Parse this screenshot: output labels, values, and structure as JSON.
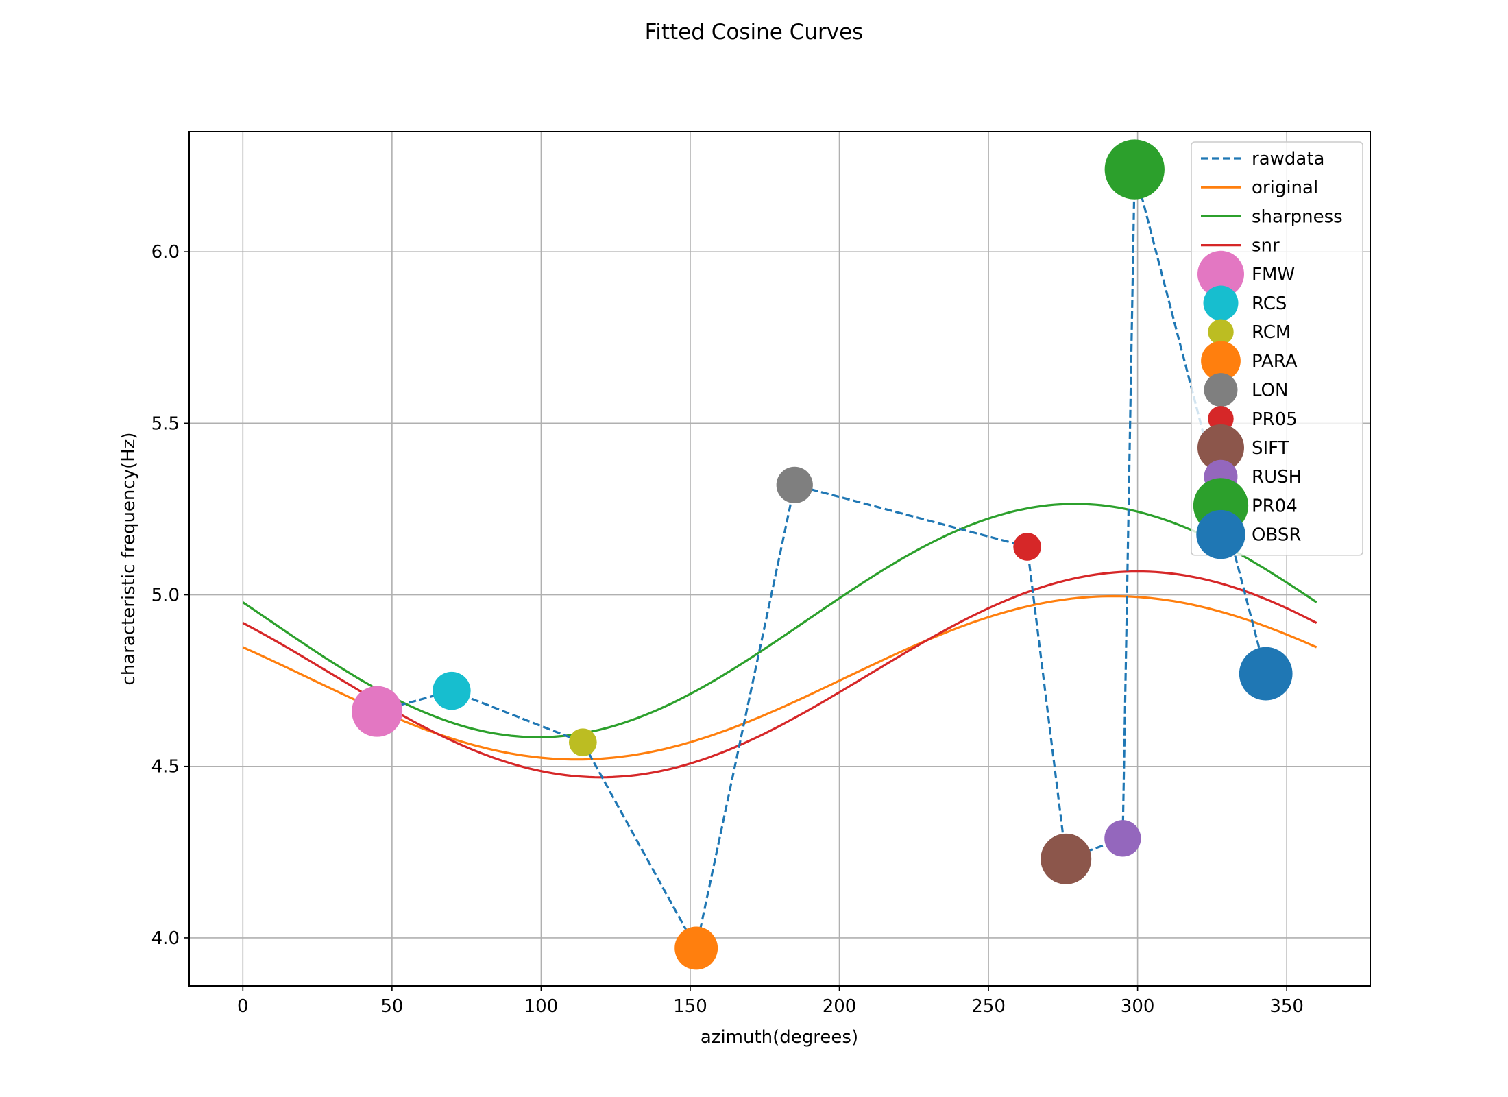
{
  "chart_data": {
    "type": "line",
    "title": "Fitted Cosine Curves",
    "xlabel": "azimuth(degrees)",
    "ylabel": "characteristic frequency(Hz)",
    "xlim": [
      -18,
      378
    ],
    "ylim": [
      3.86,
      6.35
    ],
    "xticks": [
      0,
      50,
      100,
      150,
      200,
      250,
      300,
      350
    ],
    "yticks": [
      4.0,
      4.5,
      5.0,
      5.5,
      6.0
    ],
    "xtick_labels": [
      "0",
      "50",
      "100",
      "150",
      "200",
      "250",
      "300",
      "350"
    ],
    "ytick_labels": [
      "4.0",
      "4.5",
      "5.0",
      "5.5",
      "6.0"
    ],
    "grid": true,
    "legend_position": "top-right",
    "series": [
      {
        "name": "rawdata",
        "style": "dashed",
        "color": "#1f77b4",
        "x": [
          45,
          70,
          114,
          152,
          185,
          263,
          276,
          295,
          299,
          343
        ],
        "y": [
          4.66,
          4.72,
          4.57,
          3.97,
          5.32,
          5.14,
          4.23,
          4.29,
          6.24,
          4.77
        ]
      },
      {
        "name": "original",
        "style": "solid",
        "color": "#ff7f0e",
        "fit": {
          "mean": 4.758,
          "amplitude": 0.238,
          "phase_deg": 292
        }
      },
      {
        "name": "sharpness",
        "style": "solid",
        "color": "#2ca02c",
        "fit": {
          "mean": 4.925,
          "amplitude": 0.34,
          "phase_deg": 279
        }
      },
      {
        "name": "snr",
        "style": "solid",
        "color": "#d62728",
        "fit": {
          "mean": 4.768,
          "amplitude": 0.3,
          "phase_deg": 300
        }
      }
    ],
    "points": [
      {
        "name": "FMW",
        "x": 45,
        "y": 4.66,
        "color": "#e377c2",
        "size": 1.0
      },
      {
        "name": "RCS",
        "x": 70,
        "y": 4.72,
        "color": "#17becf",
        "size": 0.75
      },
      {
        "name": "RCM",
        "x": 114,
        "y": 4.57,
        "color": "#bcbd22",
        "size": 0.55
      },
      {
        "name": "PARA",
        "x": 152,
        "y": 3.97,
        "color": "#ff7f0e",
        "size": 0.85
      },
      {
        "name": "LON",
        "x": 185,
        "y": 5.32,
        "color": "#7f7f7f",
        "size": 0.72
      },
      {
        "name": "PR05",
        "x": 263,
        "y": 5.14,
        "color": "#d62728",
        "size": 0.55
      },
      {
        "name": "SIFT",
        "x": 276,
        "y": 4.23,
        "color": "#8c564b",
        "size": 1.0
      },
      {
        "name": "RUSH",
        "x": 295,
        "y": 4.29,
        "color": "#9467bd",
        "size": 0.72
      },
      {
        "name": "PR04",
        "x": 299,
        "y": 6.24,
        "color": "#2ca02c",
        "size": 1.18
      },
      {
        "name": "OBSR",
        "x": 343,
        "y": 4.77,
        "color": "#1f77b4",
        "size": 1.05
      }
    ]
  }
}
